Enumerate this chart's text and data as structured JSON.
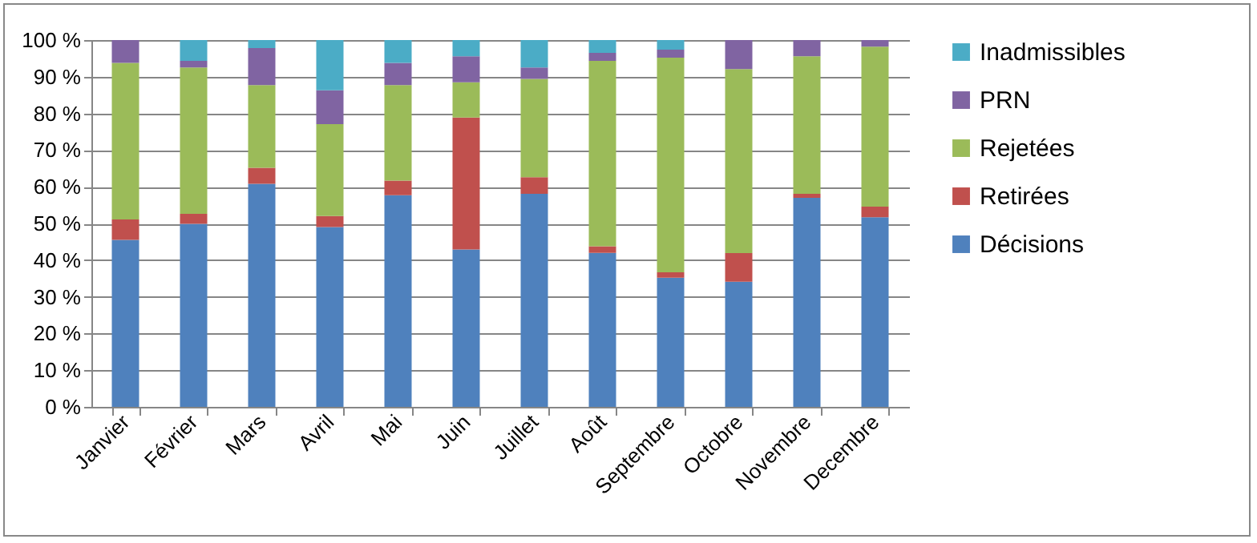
{
  "chart_data": {
    "type": "bar",
    "stacked": true,
    "categories": [
      "Janvier",
      "Février",
      "Mars",
      "Avril",
      "Mai",
      "Juin",
      "Juillet",
      "Août",
      "Septembre",
      "Octobre",
      "Novembre",
      "Decembre"
    ],
    "series": [
      {
        "name": "Décisions",
        "color": "#4f81bd",
        "values": [
          45.5,
          49.9,
          60.8,
          49.0,
          57.7,
          42.9,
          58.1,
          42.0,
          35.2,
          34.1,
          57.0,
          51.7
        ]
      },
      {
        "name": "Retirées",
        "color": "#c0504d",
        "values": [
          5.6,
          2.7,
          4.4,
          3.0,
          4.0,
          36.0,
          4.5,
          1.8,
          1.5,
          7.8,
          1.1,
          2.9
        ]
      },
      {
        "name": "Rejetées",
        "color": "#9bbb59",
        "values": [
          42.7,
          39.9,
          22.5,
          25.1,
          26.0,
          9.6,
          26.8,
          50.5,
          58.5,
          50.2,
          37.5,
          43.6
        ]
      },
      {
        "name": "PRN",
        "color": "#8064a2",
        "values": [
          6.2,
          1.8,
          10.1,
          9.2,
          6.1,
          7.1,
          3.1,
          2.2,
          2.2,
          7.9,
          4.4,
          1.8
        ]
      },
      {
        "name": "Inadmissibles",
        "color": "#4bacc6",
        "values": [
          0,
          5.7,
          2.2,
          13.7,
          6.2,
          4.4,
          7.5,
          3.5,
          2.6,
          0,
          0,
          0
        ]
      }
    ],
    "ylim": [
      0,
      100
    ],
    "yticks": [
      {
        "value": 0,
        "label": "0 %"
      },
      {
        "value": 10,
        "label": "10 %"
      },
      {
        "value": 20,
        "label": "20 %"
      },
      {
        "value": 30,
        "label": "30 %"
      },
      {
        "value": 40,
        "label": "40 %"
      },
      {
        "value": 50,
        "label": "50 %"
      },
      {
        "value": 60,
        "label": "60 %"
      },
      {
        "value": 70,
        "label": "70 %"
      },
      {
        "value": 80,
        "label": "80 %"
      },
      {
        "value": 90,
        "label": "90 %"
      },
      {
        "value": 100,
        "label": "100 %"
      }
    ],
    "grid": "y",
    "legend": "right"
  }
}
